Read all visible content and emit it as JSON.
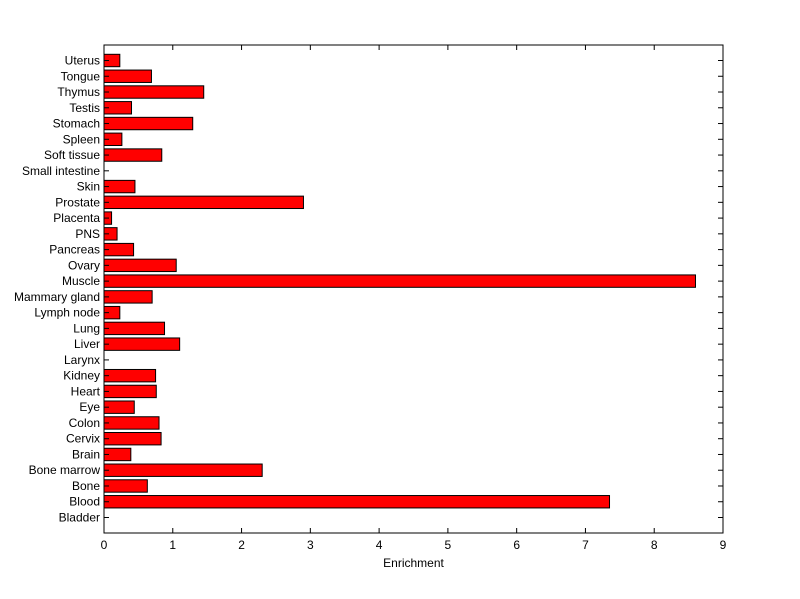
{
  "chart_data": {
    "type": "bar",
    "orientation": "horizontal",
    "title": "",
    "xlabel": "Enrichment",
    "ylabel": "",
    "xlim": [
      0,
      9
    ],
    "xticks": [
      "0",
      "1",
      "2",
      "3",
      "4",
      "5",
      "6",
      "7",
      "8",
      "9"
    ],
    "categories": [
      "Bladder",
      "Blood",
      "Bone",
      "Bone marrow",
      "Brain",
      "Cervix",
      "Colon",
      "Eye",
      "Heart",
      "Kidney",
      "Larynx",
      "Liver",
      "Lung",
      "Lymph node",
      "Mammary gland",
      "Muscle",
      "Ovary",
      "Pancreas",
      "PNS",
      "Placenta",
      "Prostate",
      "Skin",
      "Small intestine",
      "Soft tissue",
      "Spleen",
      "Stomach",
      "Testis",
      "Thymus",
      "Tongue",
      "Uterus"
    ],
    "values": [
      0,
      7.35,
      0.63,
      2.3,
      0.39,
      0.83,
      0.8,
      0.44,
      0.76,
      0.75,
      0,
      1.1,
      0.88,
      0.23,
      0.7,
      8.6,
      1.05,
      0.43,
      0.19,
      0.11,
      2.9,
      0.45,
      0,
      0.84,
      0.26,
      1.29,
      0.4,
      1.45,
      0.69,
      0.23
    ],
    "bar_color": "#ff0000",
    "bar_edge_color": "#000000",
    "grid": false,
    "legend": "none"
  }
}
